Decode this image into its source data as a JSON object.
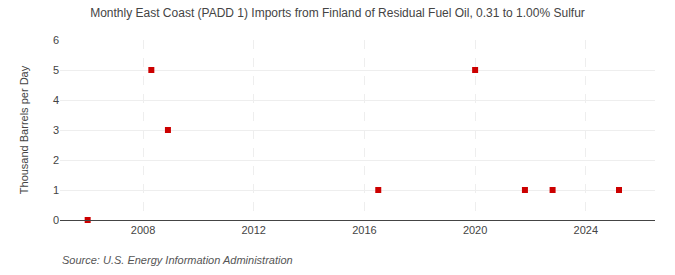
{
  "chart_data": {
    "type": "scatter",
    "title": "Monthly East Coast (PADD 1) Imports from Finland of Residual Fuel Oil, 0.31 to 1.00% Sulfur",
    "ylabel": "Thousand Barrels per Day",
    "annotations": [
      "Source: U.S. Energy Information Administration"
    ],
    "x": [
      2006.0,
      2008.3,
      2008.9,
      2016.5,
      2020.0,
      2021.8,
      2022.8,
      2025.2
    ],
    "values": [
      0.0,
      5.0,
      3.0,
      1.0,
      5.0,
      1.0,
      1.0,
      1.0
    ],
    "color": "#cc0000",
    "marker": "square",
    "xlim": [
      2005.0,
      2026.5
    ],
    "ylim": [
      0,
      6
    ],
    "xticks": [
      2008,
      2012,
      2016,
      2020,
      2024
    ],
    "yticks": [
      0,
      1,
      2,
      3,
      4,
      5,
      6
    ],
    "grid": true
  }
}
